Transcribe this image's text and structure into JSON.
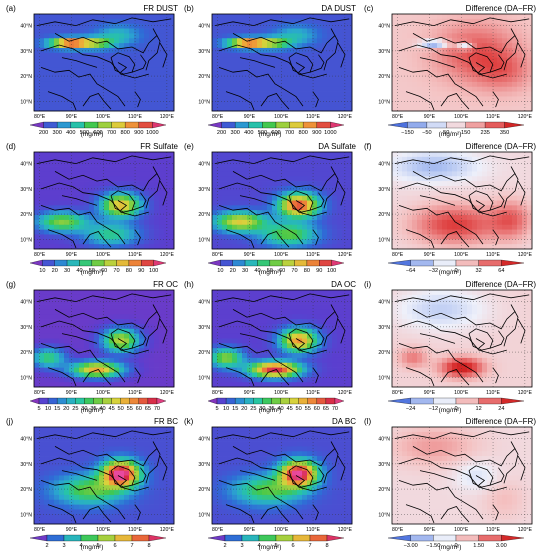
{
  "colors": {
    "abs_scale": [
      "#9c2fb4",
      "#5a3fcf",
      "#2f6ad6",
      "#2aa7cf",
      "#27c6a4",
      "#43c84a",
      "#9ad03f",
      "#d9d23c",
      "#f0a238",
      "#e8633a",
      "#d6284a",
      "#e84aa0"
    ],
    "diff_scale": [
      "#2a52d6",
      "#6f8fe6",
      "#b4c6f2",
      "#eef0fa",
      "#f4c2c2",
      "#ea7d7d",
      "#dd3838",
      "#c81414"
    ],
    "border": "#000000"
  },
  "lon_ticks": [
    "80°E",
    "90°E",
    "100°E",
    "110°E",
    "120°E"
  ],
  "lat_ticks": [
    "40°N",
    "30°N",
    "20°N",
    "10°N"
  ],
  "panels": [
    {
      "label": "(a)",
      "title": "FR DUST",
      "type": "abs",
      "field": "dust",
      "intensity": 0.55,
      "ticks": [
        "200",
        "300",
        "400",
        "500",
        "600",
        "700",
        "800",
        "900",
        "1000"
      ],
      "unit": "(mg/m²)"
    },
    {
      "label": "(b)",
      "title": "DA DUST",
      "type": "abs",
      "field": "dust",
      "intensity": 0.5,
      "ticks": [
        "200",
        "300",
        "400",
        "500",
        "600",
        "700",
        "800",
        "900",
        "1000"
      ],
      "unit": "(mg/m²)"
    },
    {
      "label": "(c)",
      "title": "Difference (DA−FR)",
      "type": "diff",
      "field": "dustdiff",
      "ticks": [
        "−150",
        "−50",
        "50",
        "150",
        "235",
        "350"
      ],
      "unit": "(mg/m²)"
    },
    {
      "label": "(d)",
      "title": "FR Sulfate",
      "type": "abs",
      "field": "sulf",
      "intensity": 0.45,
      "ticks": [
        "10",
        "20",
        "30",
        "40",
        "50",
        "60",
        "70",
        "80",
        "90",
        "100"
      ],
      "unit": "(mg/m²)"
    },
    {
      "label": "(e)",
      "title": "DA Sulfate",
      "type": "abs",
      "field": "sulf",
      "intensity": 0.8,
      "ticks": [
        "10",
        "20",
        "30",
        "40",
        "50",
        "60",
        "70",
        "80",
        "90",
        "100"
      ],
      "unit": "(mg/m²)"
    },
    {
      "label": "(f)",
      "title": "Difference (DA−FR)",
      "type": "diff",
      "field": "sulfdiff",
      "ticks": [
        "−64",
        "−32",
        "0",
        "32",
        "64"
      ],
      "unit": "(mg/m²)"
    },
    {
      "label": "(g)",
      "title": "FR OC",
      "type": "abs",
      "field": "oc",
      "intensity": 0.45,
      "ticks": [
        "5",
        "10",
        "15",
        "20",
        "25",
        "30",
        "35",
        "40",
        "45",
        "50",
        "55",
        "60",
        "65",
        "70"
      ],
      "unit": "(mg/m²)"
    },
    {
      "label": "(h)",
      "title": "DA OC",
      "type": "abs",
      "field": "oc",
      "intensity": 0.85,
      "ticks": [
        "5",
        "10",
        "15",
        "20",
        "25",
        "30",
        "35",
        "40",
        "45",
        "50",
        "55",
        "60",
        "65",
        "70"
      ],
      "unit": "(mg/m²)"
    },
    {
      "label": "(i)",
      "title": "Difference (DA−FR)",
      "type": "diff",
      "field": "ocdiff",
      "ticks": [
        "−24",
        "−12",
        "0",
        "12",
        "24"
      ],
      "unit": "(mg/m²)"
    },
    {
      "label": "(j)",
      "title": "FR BC",
      "type": "abs",
      "field": "bc",
      "intensity": 0.75,
      "ticks": [
        "2",
        "3",
        "4",
        "5",
        "6",
        "7",
        "8"
      ],
      "unit": "(mg/m²)"
    },
    {
      "label": "(k)",
      "title": "DA BC",
      "type": "abs",
      "field": "bc",
      "intensity": 0.7,
      "ticks": [
        "2",
        "3",
        "4",
        "5",
        "6",
        "7",
        "8"
      ],
      "unit": "(mg/m²)"
    },
    {
      "label": "(l)",
      "title": "Difference (DA−FR)",
      "type": "diff",
      "field": "bcdiff",
      "ticks": [
        "−3.00",
        "−1.50",
        "0",
        "1.50",
        "3.00"
      ],
      "unit": "(mg/m²)"
    }
  ]
}
